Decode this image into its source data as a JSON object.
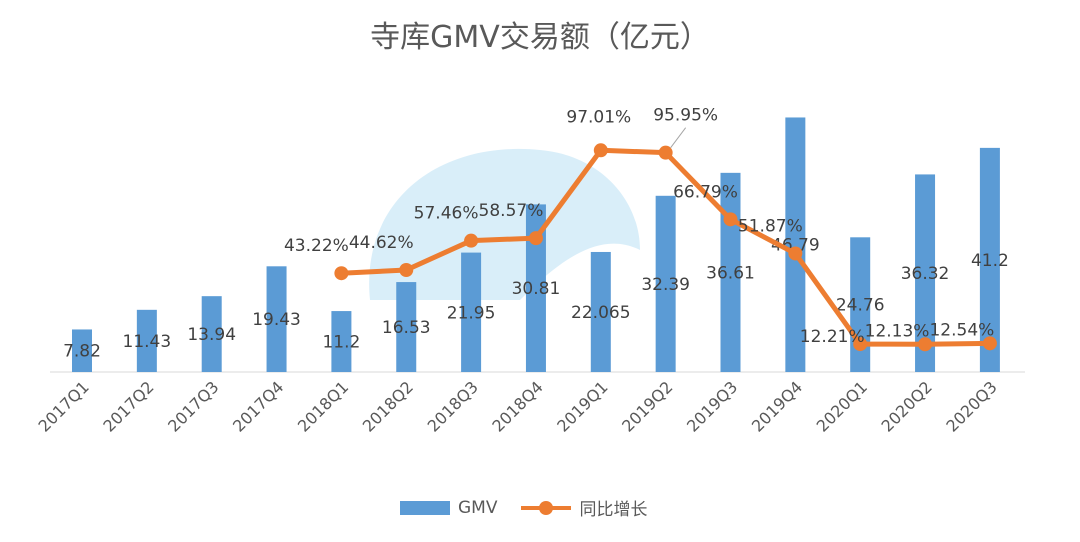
{
  "chart_data": {
    "type": "bar",
    "title": "寺库GMV交易额（亿元）",
    "xlabel": "",
    "ylabel": "",
    "categories": [
      "2017Q1",
      "2017Q2",
      "2017Q3",
      "2017Q4",
      "2018Q1",
      "2018Q2",
      "2018Q3",
      "2018Q4",
      "2019Q1",
      "2019Q2",
      "2019Q3",
      "2019Q4",
      "2020Q1",
      "2020Q2",
      "2020Q3"
    ],
    "ylim": [
      0,
      50
    ],
    "y2lim": [
      0,
      119
    ],
    "grid": false,
    "legend_position": "bottom",
    "series": [
      {
        "name": "GMV",
        "type": "bar",
        "color": "#5b9bd5",
        "values": [
          7.82,
          11.43,
          13.94,
          19.43,
          11.2,
          16.53,
          21.95,
          30.81,
          22.065,
          32.39,
          36.61,
          46.79,
          24.76,
          36.32,
          41.2
        ],
        "labels": [
          "7.82",
          "11.43",
          "13.94",
          "19.43",
          "11.2",
          "16.53",
          "21.95",
          "30.81",
          "22.065",
          "32.39",
          "36.61",
          "46.79",
          "24.76",
          "36.32",
          "41.2"
        ]
      },
      {
        "name": "同比增长",
        "type": "line",
        "axis": "secondary",
        "color": "#ed7d31",
        "values": [
          null,
          null,
          null,
          null,
          43.22,
          44.62,
          57.46,
          58.57,
          97.01,
          95.95,
          66.79,
          51.87,
          12.21,
          12.13,
          12.54
        ],
        "labels": [
          "",
          "",
          "",
          "",
          "43.22%",
          "44.62%",
          "57.46%",
          "58.57%",
          "97.01%",
          "95.95%",
          "66.79%",
          "51.87%",
          "12.21%",
          "12.13%",
          "12.54%"
        ]
      }
    ]
  }
}
